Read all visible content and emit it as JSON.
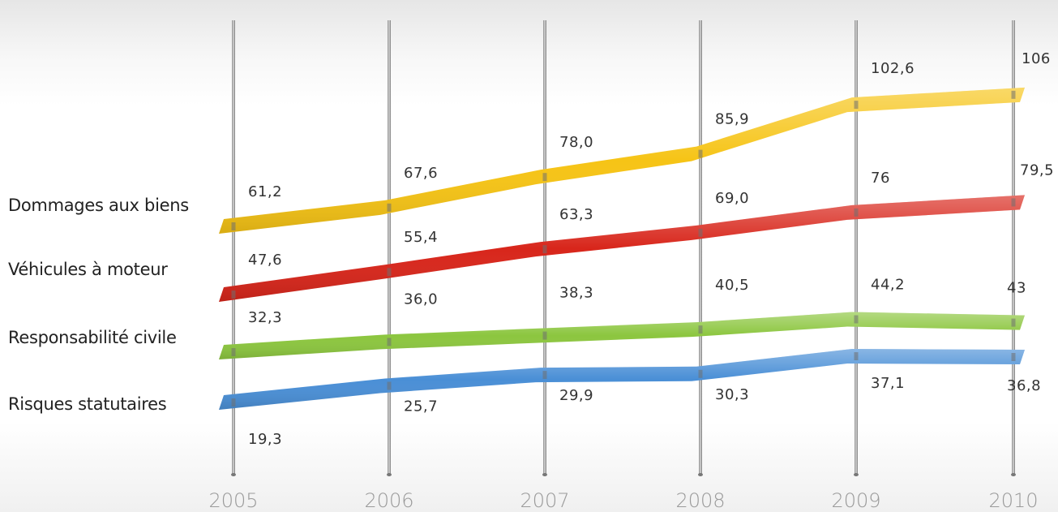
{
  "chart_data": {
    "type": "line",
    "categories": [
      "2005",
      "2006",
      "2007",
      "2008",
      "2009",
      "2010"
    ],
    "series": [
      {
        "name": "Dommages aux biens",
        "color": "#f6c416",
        "values": [
          61.2,
          67.6,
          78.0,
          85.9,
          102.6,
          106
        ],
        "labels": [
          "61,2",
          "67,6",
          "78,0",
          "85,9",
          "102,6",
          "106"
        ]
      },
      {
        "name": "Véhicules à moteur",
        "color": "#d8261b",
        "values": [
          47.6,
          55.4,
          63.3,
          69.0,
          76,
          79.5
        ],
        "labels": [
          "47,6",
          "55,4",
          "63,3",
          "69,0",
          "76",
          "79,5"
        ]
      },
      {
        "name": "Responsabilité civile",
        "color": "#8cc63f",
        "values": [
          32.3,
          36.0,
          38.3,
          40.5,
          44.2,
          43
        ],
        "labels": [
          "32,3",
          "36,0",
          "38,3",
          "40,5",
          "44,2",
          "43"
        ]
      },
      {
        "name": "Risques statutaires",
        "color": "#4a8fd6",
        "values": [
          19.3,
          25.7,
          29.9,
          30.3,
          37.1,
          36.8
        ],
        "labels": [
          "19,3",
          "25,7",
          "29,9",
          "30,3",
          "37,1",
          "36,8"
        ]
      }
    ],
    "legend_position": "left"
  }
}
